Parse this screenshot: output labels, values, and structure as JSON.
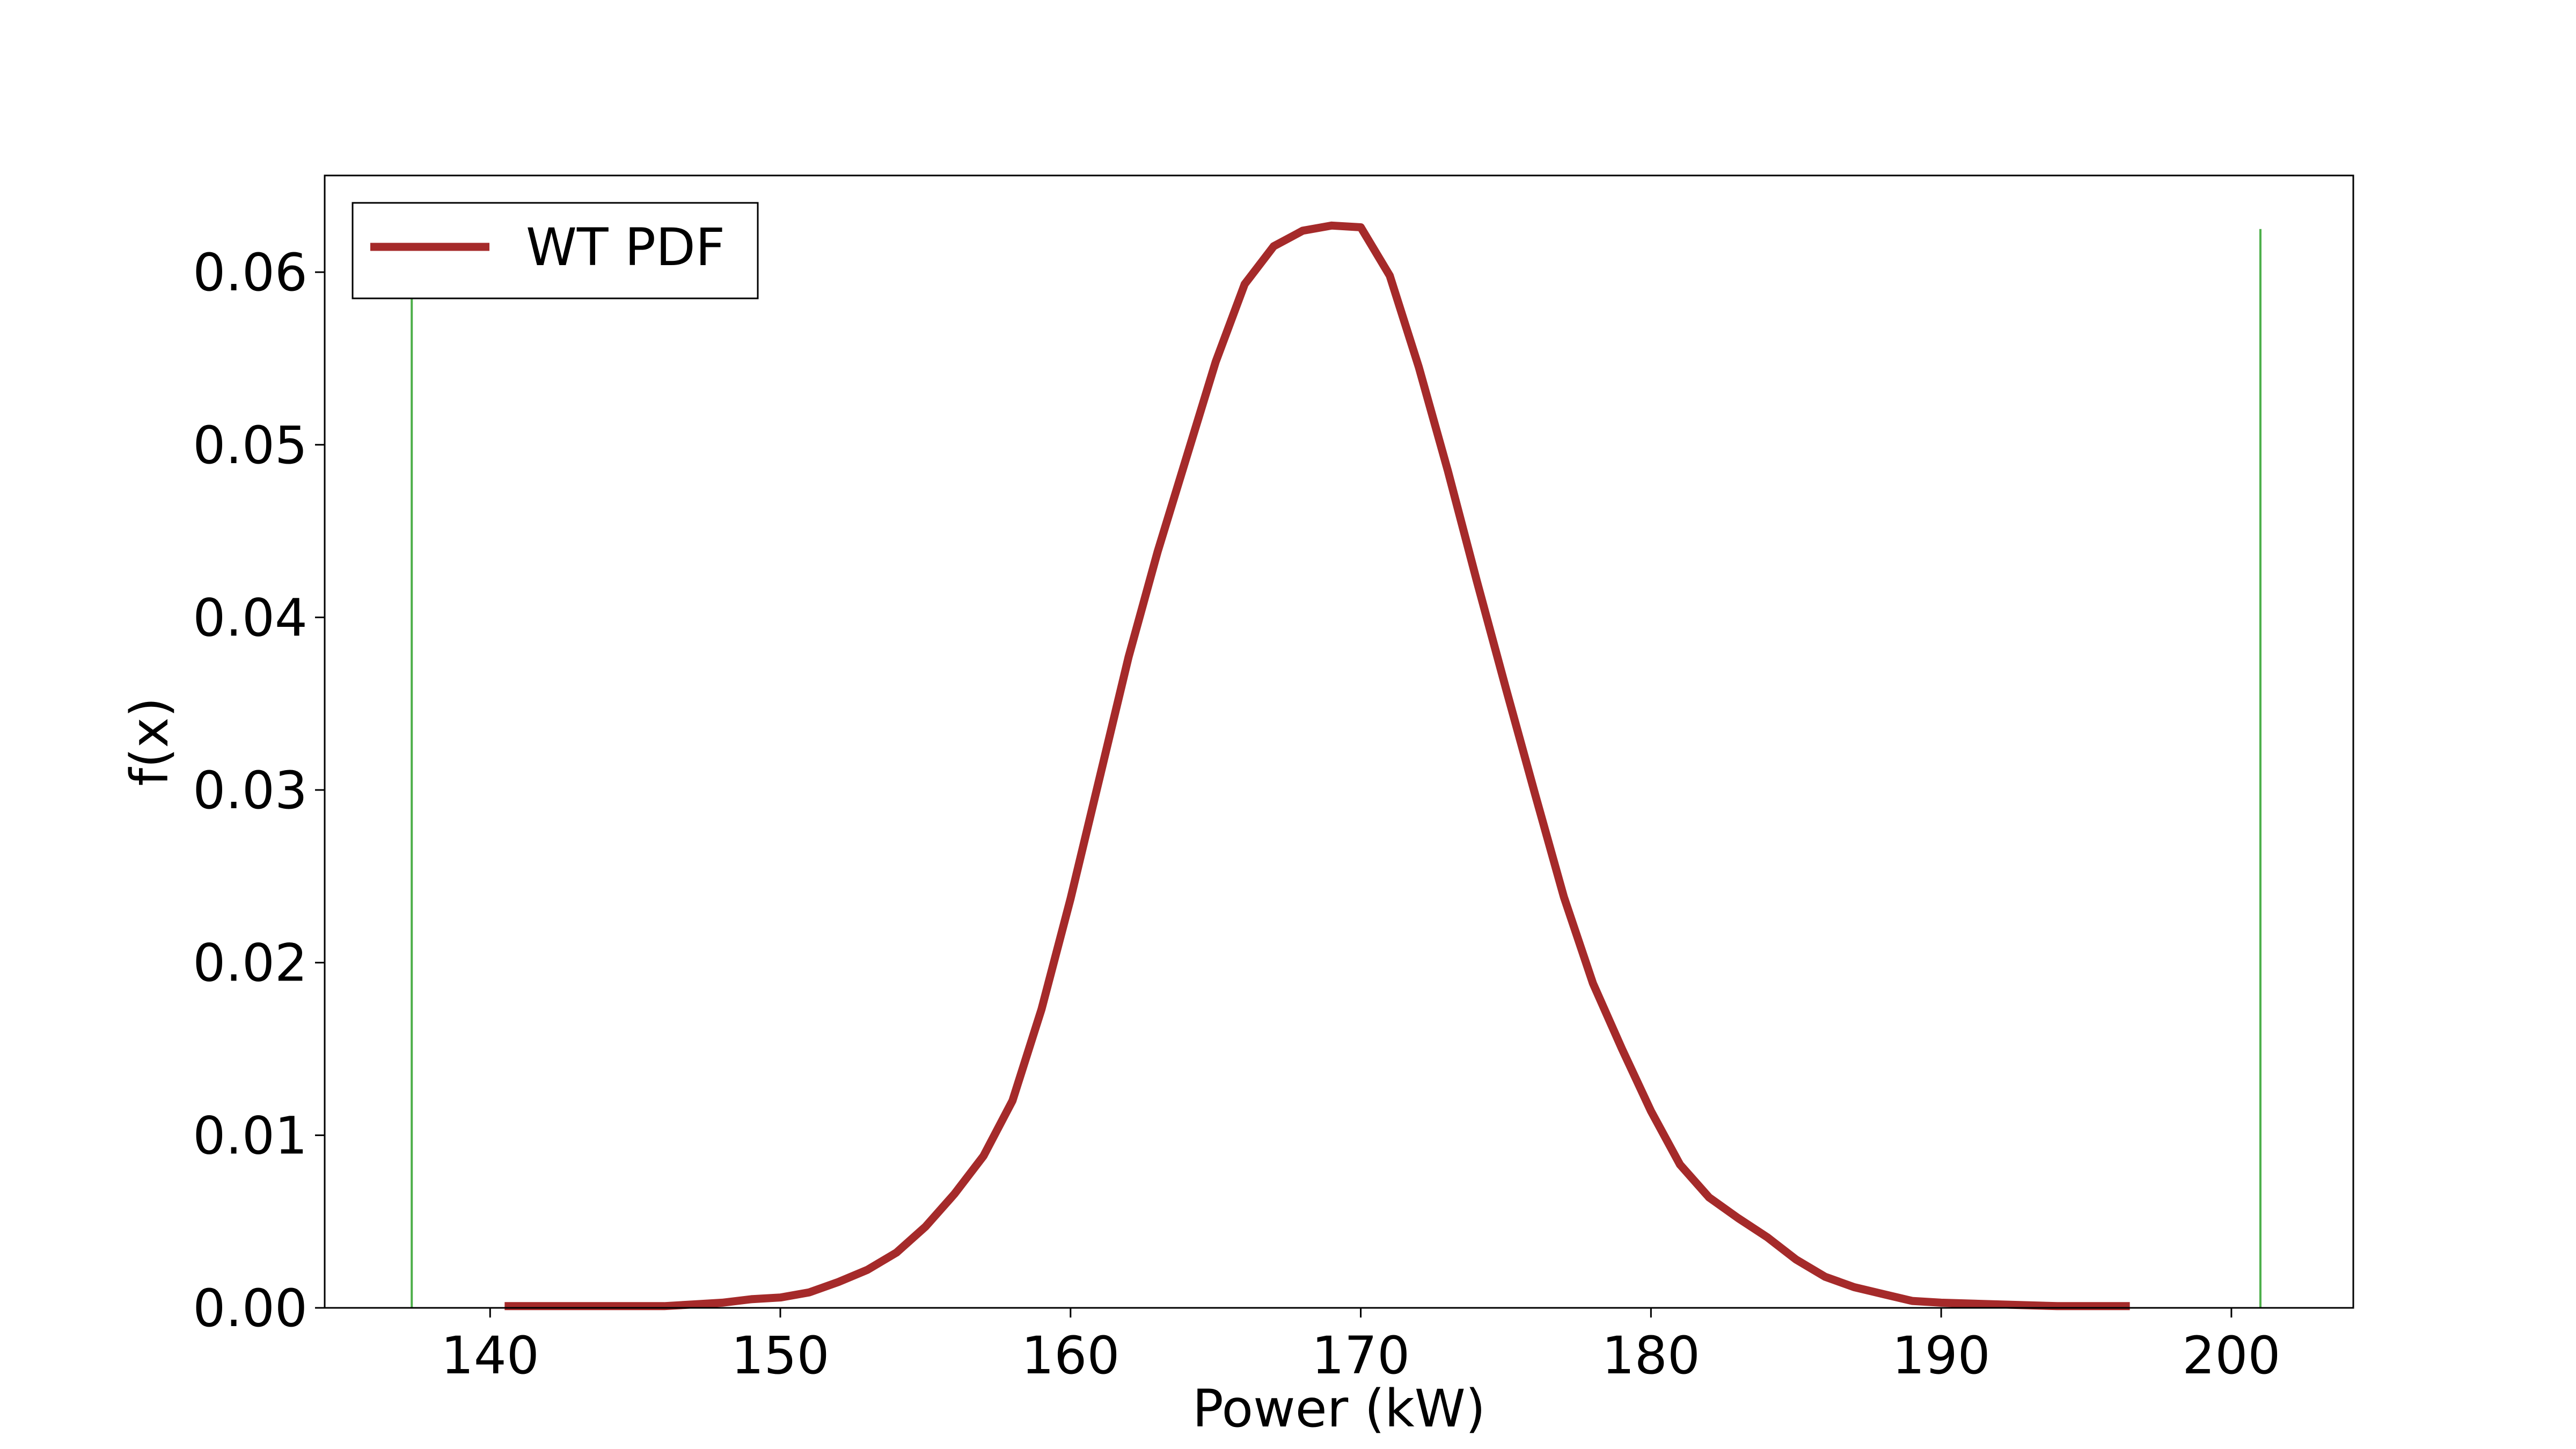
{
  "chart_data": {
    "type": "line",
    "title": "",
    "xlabel": "Power (kW)",
    "ylabel": "f(x)",
    "xlim": [
      134.3,
      204.2
    ],
    "ylim": [
      0,
      0.0656
    ],
    "xticks": [
      140,
      150,
      160,
      170,
      180,
      190,
      200
    ],
    "xtick_labels": [
      "140",
      "150",
      "160",
      "170",
      "180",
      "190",
      "200"
    ],
    "yticks": [
      0.0,
      0.01,
      0.02,
      0.03,
      0.04,
      0.05,
      0.06
    ],
    "ytick_labels": [
      "0.00",
      "0.01",
      "0.02",
      "0.03",
      "0.04",
      "0.05",
      "0.06"
    ],
    "grid": false,
    "legend_position": "top-left",
    "series": [
      {
        "name": "WT PDF",
        "color": "#a52a2a",
        "x": [
          140.5,
          142,
          144,
          146,
          147,
          148,
          149,
          150,
          151,
          152,
          153,
          154,
          155,
          156,
          157,
          158,
          159,
          160,
          161,
          162,
          163,
          164,
          165,
          166,
          167,
          168,
          169,
          170,
          171,
          172,
          173,
          174,
          175,
          176,
          177,
          178,
          179,
          180,
          181,
          182,
          183,
          184,
          185,
          186,
          187,
          188,
          189,
          190,
          192,
          194,
          196.5
        ],
        "y": [
          0.0001,
          0.0001,
          0.0001,
          0.0001,
          0.0002,
          0.0003,
          0.0005,
          0.0006,
          0.0009,
          0.0015,
          0.0022,
          0.0032,
          0.0047,
          0.0066,
          0.0088,
          0.012,
          0.0173,
          0.0237,
          0.0307,
          0.0377,
          0.0438,
          0.0493,
          0.0548,
          0.0593,
          0.0615,
          0.0624,
          0.0627,
          0.0626,
          0.0598,
          0.0545,
          0.0485,
          0.0421,
          0.0359,
          0.0298,
          0.0238,
          0.0188,
          0.015,
          0.0114,
          0.0083,
          0.0064,
          0.0052,
          0.0041,
          0.0028,
          0.0018,
          0.0012,
          0.0008,
          0.0004,
          0.0003,
          0.0002,
          0.0001,
          0.0001
        ]
      }
    ],
    "vertical_lines": [
      {
        "x": 137.3,
        "color": "#4daf4a"
      },
      {
        "x": 201.0,
        "color": "#4daf4a"
      }
    ],
    "vertical_line_top": 0.0625
  }
}
